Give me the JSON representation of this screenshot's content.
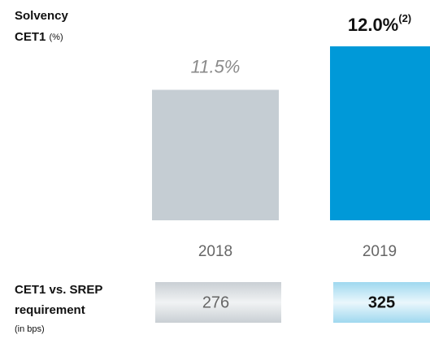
{
  "chart_data": {
    "type": "bar",
    "title": "Solvency",
    "subtitle": "CET1",
    "subtitle_unit": "(%)",
    "categories": [
      "2018",
      "2019"
    ],
    "values": [
      11.5,
      12.0
    ],
    "value_labels": [
      "11.5%",
      "12.0%"
    ],
    "value_label_notes": [
      null,
      "(2)"
    ],
    "colors": [
      "#c5cdd3",
      "#0099d8"
    ],
    "ylim": [
      10,
      12
    ],
    "srep": {
      "label_lines": [
        "CET1 vs. SREP",
        "requirement"
      ],
      "unit": "(in bps)",
      "values": [
        276,
        325
      ]
    }
  }
}
